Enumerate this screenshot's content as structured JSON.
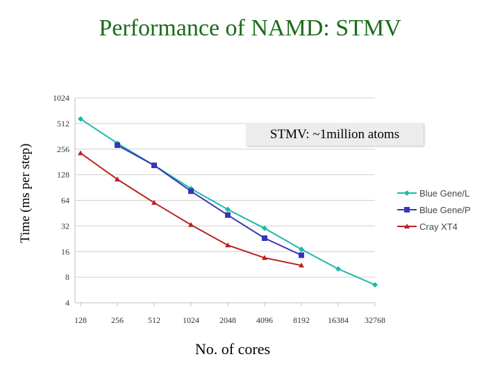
{
  "slide": {
    "title": "Performance of NAMD: STMV"
  },
  "chart_data": {
    "type": "line",
    "title": "Performance of NAMD: STMV",
    "xlabel": "No. of cores",
    "ylabel": "Time (ms per step)",
    "yscale": "log2",
    "ylim": [
      4,
      1024
    ],
    "grid": true,
    "legend_position": "right",
    "categories": [
      "128",
      "256",
      "512",
      "1024",
      "2048",
      "4096",
      "8192",
      "16384",
      "32768"
    ],
    "y_ticks": [
      "4",
      "8",
      "16",
      "32",
      "64",
      "128",
      "256",
      "512",
      "1024"
    ],
    "annotation": "STMV: ~1million atoms",
    "series": [
      {
        "name": "Blue Gene/L",
        "color": "#1fb8a8",
        "marker": "diamond",
        "values": [
          580,
          300,
          165,
          88,
          50,
          30,
          17,
          10,
          6.5
        ]
      },
      {
        "name": "Blue Gene/P",
        "color": "#3636b8",
        "marker": "square",
        "values": [
          null,
          285,
          165,
          82,
          43,
          23,
          14.5,
          null,
          null
        ]
      },
      {
        "name": "Cray XT4",
        "color": "#b82020",
        "marker": "triangle",
        "values": [
          230,
          113,
          60,
          33,
          19,
          13.5,
          11,
          null,
          null
        ]
      }
    ]
  }
}
